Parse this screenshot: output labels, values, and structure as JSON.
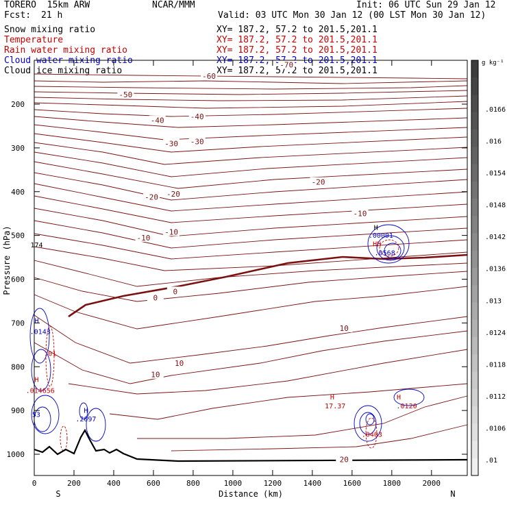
{
  "header": {
    "model": "TORERO  15km ARW",
    "center": "NCAR/MMM",
    "init": "Init: 06 UTC Sun 29 Jan 12",
    "fcst_label": "Fcst:",
    "fcst_value": "21 h",
    "valid": "Valid: 03 UTC Mon 30 Jan 12 (00 LST Mon 30 Jan 12)"
  },
  "fields": [
    {
      "name": "Snow mixing ratio",
      "color": "#000000",
      "xy": "XY= 187.2, 57.2 to 201.5,201.1"
    },
    {
      "name": "Temperature",
      "color": "#c80000",
      "xy": "XY= 187.2, 57.2 to 201.5,201.1"
    },
    {
      "name": "Rain water mixing ratio",
      "color": "#c80000",
      "xy": "XY= 187.2, 57.2 to 201.5,201.1"
    },
    {
      "name": "Cloud water mixing ratio",
      "color": "#0000c8",
      "xy": "XY= 187.2, 57.2 to 201.5,201.1"
    },
    {
      "name": "Cloud ice mixing ratio",
      "color": "#000000",
      "xy": "XY= 187.2, 57.2 to 201.5,201.1"
    }
  ],
  "colorbar": {
    "unit": "g kg⁻¹",
    "labels": [
      ".0166",
      ".016",
      ".0154",
      ".0148",
      ".0142",
      ".0136",
      ".013",
      ".0124",
      ".0118",
      ".0112",
      ".0106",
      ".01"
    ]
  },
  "chart_data": {
    "type": "contour",
    "xlabel": "Distance (km)",
    "ylabel": "Pressure (hPa)",
    "x_ticks": [
      0,
      200,
      400,
      600,
      800,
      1000,
      1200,
      1400,
      1600,
      1800,
      2000
    ],
    "y_ticks": [
      200,
      300,
      400,
      500,
      600,
      700,
      800,
      900,
      1000
    ],
    "xlim": [
      0,
      2180
    ],
    "ylim_hpa": [
      1050,
      100
    ],
    "end_labels": {
      "left": "S",
      "right": "N"
    },
    "temperature_contours": [
      {
        "level": -70,
        "labels": [
          {
            "x": 1270,
            "p": 110,
            "text": "-70"
          }
        ]
      },
      {
        "level": -60,
        "labels": [
          {
            "x": 880,
            "p": 136,
            "text": "-60"
          }
        ]
      },
      {
        "level": -50,
        "labels": [
          {
            "x": 460,
            "p": 178,
            "text": "-50"
          }
        ]
      },
      {
        "level": -40,
        "labels": [
          {
            "x": 620,
            "p": 237,
            "text": "-40"
          },
          {
            "x": 820,
            "p": 228,
            "text": "-40"
          }
        ]
      },
      {
        "level": -30,
        "labels": [
          {
            "x": 690,
            "p": 290,
            "text": "-30"
          },
          {
            "x": 820,
            "p": 285,
            "text": "-30"
          }
        ]
      },
      {
        "level": -20,
        "labels": [
          {
            "x": 590,
            "p": 412,
            "text": "-20"
          },
          {
            "x": 700,
            "p": 405,
            "text": "-20"
          },
          {
            "x": 1430,
            "p": 378,
            "text": "-20"
          }
        ]
      },
      {
        "level": -10,
        "labels": [
          {
            "x": 550,
            "p": 505,
            "text": "-10"
          },
          {
            "x": 690,
            "p": 492,
            "text": "-10"
          },
          {
            "x": 1640,
            "p": 450,
            "text": "-10"
          }
        ]
      },
      {
        "level": 0,
        "labels": [
          {
            "x": 610,
            "p": 642,
            "text": "0"
          },
          {
            "x": 710,
            "p": 628,
            "text": "0"
          }
        ]
      },
      {
        "level": 10,
        "labels": [
          {
            "x": 610,
            "p": 818,
            "text": "10"
          },
          {
            "x": 730,
            "p": 792,
            "text": "10"
          },
          {
            "x": 1560,
            "p": 712,
            "text": "10"
          }
        ]
      },
      {
        "level": 20,
        "labels": [
          {
            "x": 1560,
            "p": 1012,
            "text": "20"
          }
        ]
      }
    ],
    "extrema": [
      {
        "x": 12,
        "p": 700,
        "type": "H",
        "color": "#0000c8"
      },
      {
        "x": 30,
        "p": 725,
        "value": ".0143",
        "color": "#0000c8"
      },
      {
        "x": 80,
        "p": 775,
        "value": ".01",
        "color": "#c80000"
      },
      {
        "x": 12,
        "p": 835,
        "type": "H",
        "color": "#c80000"
      },
      {
        "x": 30,
        "p": 860,
        "value": ".014656",
        "color": "#c80000"
      },
      {
        "x": 260,
        "p": 905,
        "type": "H",
        "color": "#0000c8"
      },
      {
        "x": 260,
        "p": 925,
        "value": ".2097",
        "color": "#0000c8"
      },
      {
        "x": 10,
        "p": 915,
        "value": "53",
        "color": "#0000c8"
      },
      {
        "x": 12,
        "p": 527,
        "value": "174",
        "color": "#000000"
      },
      {
        "x": 1720,
        "p": 487,
        "type": "H",
        "color": "#000000"
      },
      {
        "x": 1745,
        "p": 505,
        "value": ".00001",
        "color": "#0000c8"
      },
      {
        "x": 1725,
        "p": 525,
        "type": "HH",
        "color": "#c80000"
      },
      {
        "x": 1765,
        "p": 545,
        "value": ".0568",
        "color": "#0000c8"
      },
      {
        "x": 1500,
        "p": 875,
        "type": "H",
        "color": "#c80000"
      },
      {
        "x": 1515,
        "p": 895,
        "value": "17.37",
        "color": "#c80000"
      },
      {
        "x": 1835,
        "p": 875,
        "type": "H",
        "color": "#c80000"
      },
      {
        "x": 1875,
        "p": 895,
        "value": ".0120",
        "color": "#c80000"
      },
      {
        "x": 1700,
        "p": 960,
        "value": ".0403",
        "color": "#c80000"
      }
    ]
  }
}
